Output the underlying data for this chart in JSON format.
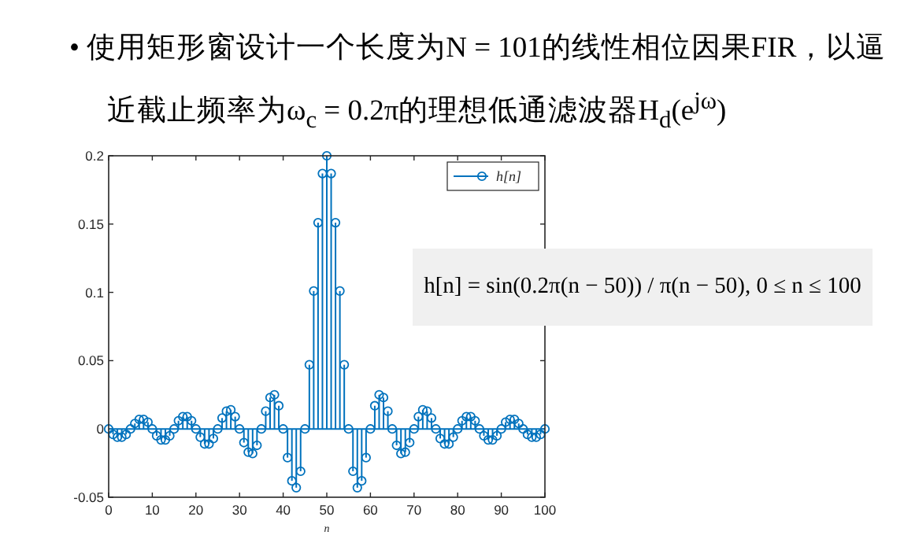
{
  "chart_data": {
    "type": "lollipop",
    "title": "• 使用矩形窗设计一个长度为N = 101的线性相位因果FIR，以逼近截止频率为ω$_{c}$ = 0.2π的理想低通滤波器H$_{d}$(e$^{jω}$)",
    "xlabel": "n",
    "annotations": [
      "h[n] = sin(0.2π(n − 50)) / π(n − 50), 0 ≤ n ≤ 100"
    ],
    "x": [
      0,
      1,
      2,
      3,
      4,
      5,
      6,
      7,
      8,
      9,
      10,
      11,
      12,
      13,
      14,
      15,
      16,
      17,
      18,
      19,
      20,
      21,
      22,
      23,
      24,
      25,
      26,
      27,
      28,
      29,
      30,
      31,
      32,
      33,
      34,
      35,
      36,
      37,
      38,
      39,
      40,
      41,
      42,
      43,
      44,
      45,
      46,
      47,
      48,
      49,
      50,
      51,
      52,
      53,
      54,
      55,
      56,
      57,
      58,
      59,
      60,
      61,
      62,
      63,
      64,
      65,
      66,
      67,
      68,
      69,
      70,
      71,
      72,
      73,
      74,
      75,
      76,
      77,
      78,
      79,
      80,
      81,
      82,
      83,
      84,
      85,
      86,
      87,
      88,
      89,
      90,
      91,
      92,
      93,
      94,
      95,
      96,
      97,
      98,
      99,
      100
    ],
    "series": [
      {
        "name": "h[n]",
        "color": "#0072bd",
        "values": [
          0,
          -0.004,
          -0.006,
          -0.006,
          -0.004,
          0,
          0.004,
          0.007,
          0.007,
          0.005,
          0,
          -0.005,
          -0.008,
          -0.008,
          -0.005,
          0,
          0.006,
          0.009,
          0.009,
          0.006,
          0,
          -0.006,
          -0.011,
          -0.011,
          -0.007,
          0,
          0.008,
          0.013,
          0.014,
          0.009,
          0,
          -0.01,
          -0.017,
          -0.018,
          -0.012,
          0,
          0.013,
          0.023,
          0.025,
          0.017,
          0,
          -0.021,
          -0.038,
          -0.043,
          -0.031,
          0,
          0.047,
          0.101,
          0.151,
          0.187,
          0.2,
          0.187,
          0.151,
          0.101,
          0.047,
          0,
          -0.031,
          -0.043,
          -0.038,
          -0.021,
          0,
          0.017,
          0.025,
          0.023,
          0.013,
          0,
          -0.012,
          -0.018,
          -0.017,
          -0.01,
          0,
          0.009,
          0.014,
          0.013,
          0.008,
          0,
          -0.007,
          -0.011,
          -0.011,
          -0.006,
          0,
          0.006,
          0.009,
          0.009,
          0.006,
          0,
          -0.005,
          -0.008,
          -0.008,
          -0.005,
          0,
          0.005,
          0.007,
          0.007,
          0.004,
          0,
          -0.004,
          -0.006,
          -0.006,
          -0.004,
          0
        ]
      }
    ],
    "xlim": [
      0,
      100
    ],
    "ylim": [
      -0.05,
      0.2
    ],
    "xticks": [
      0,
      10,
      20,
      30,
      40,
      50,
      60,
      70,
      80,
      90,
      100
    ],
    "yticks": [
      -0.05,
      0,
      0.05,
      0.1,
      0.15,
      0.2
    ],
    "ref_lines": [
      {
        "axis": "y",
        "value": 0,
        "color": "#0072bd"
      }
    ],
    "legend": "top right",
    "marker": "circle"
  }
}
